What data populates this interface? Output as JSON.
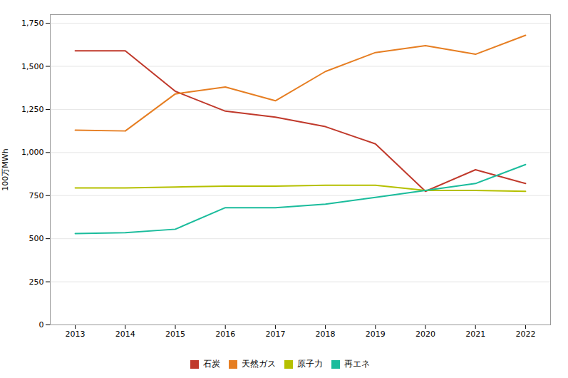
{
  "chart_data": {
    "type": "line",
    "x": [
      2013,
      2014,
      2015,
      2016,
      2017,
      2018,
      2019,
      2020,
      2021,
      2022
    ],
    "xlim": [
      2012.5,
      2022.5
    ],
    "xticks": [
      2013,
      2014,
      2015,
      2016,
      2017,
      2018,
      2019,
      2020,
      2021,
      2022
    ],
    "ylabel": "100万MWh",
    "ylim": [
      0,
      1800
    ],
    "yticks": [
      0,
      250,
      500,
      750,
      {
        "value": 1000,
        "label": "1,000"
      },
      {
        "value": 1250,
        "label": "1,250"
      },
      {
        "value": 1500,
        "label": "1,500"
      },
      {
        "value": 1750,
        "label": "1,750"
      }
    ],
    "grid": true,
    "legend": "bottom",
    "series": [
      {
        "name": "石炭",
        "color": "#c0392b",
        "values": [
          1590,
          1590,
          1355,
          1240,
          1205,
          1150,
          1050,
          775,
          900,
          820
        ]
      },
      {
        "name": "天然ガス",
        "color": "#e67e22",
        "values": [
          1130,
          1125,
          1340,
          1380,
          1300,
          1470,
          1580,
          1620,
          1570,
          1680
        ]
      },
      {
        "name": "原子力",
        "color": "#b5c000",
        "values": [
          795,
          795,
          800,
          805,
          805,
          810,
          810,
          780,
          780,
          775
        ]
      },
      {
        "name": "再エネ",
        "color": "#1abc9c",
        "values": [
          530,
          535,
          555,
          680,
          680,
          700,
          740,
          780,
          820,
          930
        ]
      }
    ]
  }
}
